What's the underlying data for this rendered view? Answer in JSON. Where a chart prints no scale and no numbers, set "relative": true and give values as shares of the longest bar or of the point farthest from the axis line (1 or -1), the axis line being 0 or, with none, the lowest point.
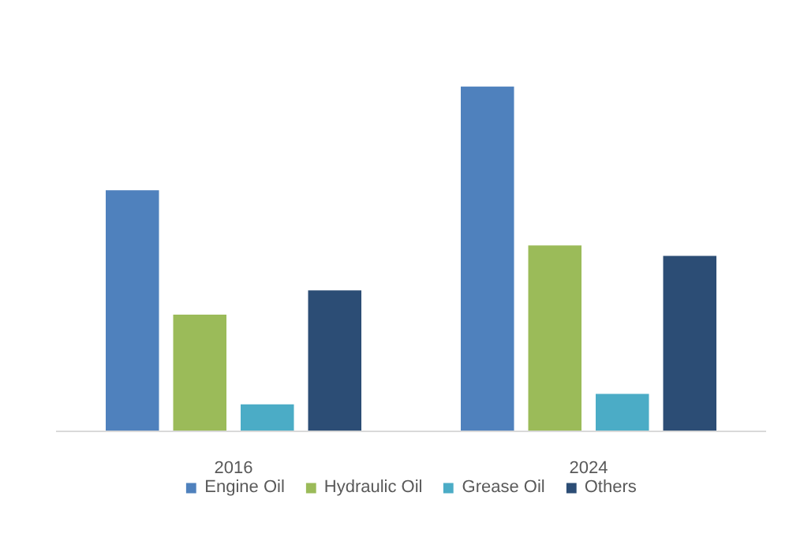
{
  "chart_data": {
    "type": "bar",
    "relative": true,
    "categories": [
      "2016",
      "2024"
    ],
    "series": [
      {
        "name": "Engine Oil",
        "color": "#4f81bd",
        "values": [
          0.7,
          1
        ]
      },
      {
        "name": "Hydraulic Oil",
        "color": "#9bbb59",
        "values": [
          0.34,
          0.54
        ]
      },
      {
        "name": "Grease Oil",
        "color": "#4bacc6",
        "values": [
          0.08,
          0.11
        ]
      },
      {
        "name": "Others",
        "color": "#2c4d75",
        "values": [
          0.41,
          0.51
        ]
      }
    ],
    "legend": "bottom"
  }
}
